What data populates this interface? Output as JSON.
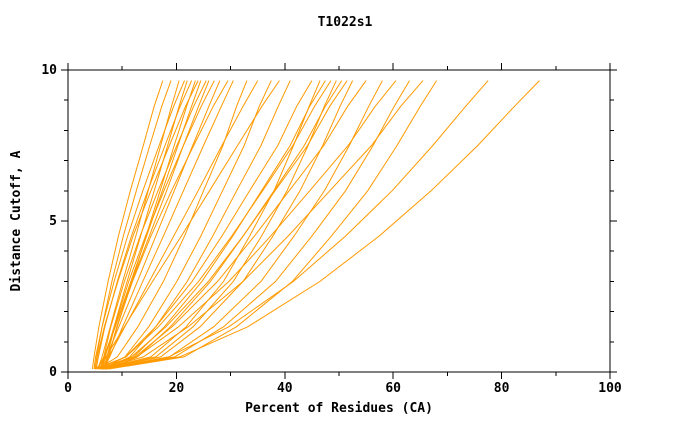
{
  "page": {
    "background": "#ffffff"
  },
  "chart_data": {
    "type": "line",
    "title": "T1022s1",
    "xlabel": "Percent of Residues (CA)",
    "ylabel": "Distance Cutoff, A",
    "xlim": [
      0,
      100
    ],
    "ylim": [
      0,
      10
    ],
    "x_ticks": [
      0,
      20,
      40,
      60,
      80,
      100
    ],
    "y_ticks": [
      0,
      5,
      10
    ],
    "x_minor_ticks": [
      10,
      30,
      50,
      70,
      90
    ],
    "y_minor_ticks": [
      1,
      2,
      3,
      4,
      6,
      7,
      8,
      9
    ],
    "grid": false,
    "legend": "none",
    "line_color": "#ff9a00",
    "axis_color": "#000000",
    "background": "#ffffff",
    "y_levels": [
      0.1,
      0.5,
      1.5,
      3,
      4.5,
      6,
      7.5,
      8.8,
      9.65
    ],
    "series": [
      [
        4.5,
        4.8,
        5.7,
        7.4,
        9.3,
        11.5,
        13.9,
        15.9,
        17.5
      ],
      [
        5.0,
        5.3,
        6.3,
        8.1,
        10.2,
        12.6,
        15.1,
        17.3,
        19.0
      ],
      [
        5.5,
        6.3,
        7.8,
        10.1,
        12.5,
        14.8,
        17.1,
        19.1,
        20.5
      ],
      [
        4.8,
        5.1,
        6.3,
        8.5,
        11.0,
        13.8,
        16.8,
        19.5,
        21.5
      ],
      [
        6.0,
        6.8,
        8.5,
        10.9,
        13.4,
        15.9,
        18.4,
        20.5,
        22.0
      ],
      [
        5.2,
        5.6,
        6.8,
        9.1,
        11.7,
        14.7,
        17.9,
        20.7,
        22.8
      ],
      [
        6.5,
        7.4,
        9.1,
        11.8,
        14.4,
        17.0,
        19.6,
        21.9,
        23.5
      ],
      [
        5.0,
        5.4,
        6.7,
        9.2,
        12.0,
        15.3,
        18.7,
        21.7,
        24.0
      ],
      [
        5.8,
        6.8,
        8.7,
        11.6,
        14.5,
        17.4,
        20.3,
        22.8,
        24.5
      ],
      [
        6.2,
        6.6,
        7.9,
        10.4,
        13.3,
        16.6,
        20.1,
        23.2,
        25.5
      ],
      [
        5.5,
        6.6,
        8.7,
        11.8,
        15.0,
        18.2,
        21.3,
        24.1,
        26.0
      ],
      [
        6.8,
        7.2,
        8.6,
        11.2,
        14.3,
        17.7,
        21.3,
        24.6,
        27.0
      ],
      [
        6.0,
        7.1,
        9.4,
        12.8,
        16.2,
        19.6,
        23.0,
        26.0,
        28.0
      ],
      [
        7.0,
        7.5,
        9.0,
        11.9,
        15.3,
        19.1,
        23.2,
        26.8,
        29.5
      ],
      [
        6.4,
        7.7,
        10.1,
        13.8,
        17.6,
        21.3,
        25.0,
        28.3,
        30.5
      ],
      [
        5.5,
        9.1,
        12.9,
        17.6,
        21.5,
        25.0,
        28.6,
        31.1,
        33.0
      ],
      [
        6.0,
        7.5,
        10.5,
        15.0,
        19.5,
        24.0,
        28.4,
        32.3,
        35.0
      ],
      [
        6.5,
        10.5,
        14.9,
        20.1,
        24.5,
        28.5,
        32.5,
        35.3,
        37.5
      ],
      [
        5.2,
        7.0,
        10.4,
        15.6,
        20.9,
        26.1,
        31.3,
        35.8,
        39.0
      ],
      [
        7.0,
        11.4,
        16.2,
        22.0,
        26.7,
        31.1,
        35.6,
        38.8,
        41.0
      ],
      [
        5.5,
        10.6,
        16.2,
        22.9,
        28.4,
        33.5,
        38.7,
        42.2,
        45.0
      ],
      [
        6.0,
        15.3,
        21.8,
        28.7,
        33.5,
        38.0,
        41.6,
        44.5,
        46.5
      ],
      [
        6.8,
        12.1,
        17.8,
        24.7,
        30.4,
        35.7,
        41.0,
        44.6,
        47.5
      ],
      [
        5.0,
        10.7,
        16.7,
        24.1,
        30.2,
        35.9,
        41.5,
        45.5,
        48.5
      ],
      [
        6.3,
        16.2,
        23.1,
        30.5,
        35.7,
        40.4,
        44.3,
        47.3,
        49.5
      ],
      [
        7.2,
        12.8,
        18.9,
        26.3,
        32.3,
        38.0,
        43.6,
        47.5,
        50.5
      ],
      [
        5.8,
        11.7,
        18.1,
        25.9,
        32.3,
        38.2,
        44.2,
        48.3,
        51.5
      ],
      [
        6.5,
        17.1,
        24.4,
        32.3,
        37.8,
        42.8,
        47.0,
        50.2,
        52.5
      ],
      [
        6.0,
        12.4,
        19.2,
        27.6,
        34.4,
        40.8,
        47.2,
        51.6,
        55.0
      ],
      [
        7.0,
        18.7,
        26.9,
        35.6,
        41.7,
        47.3,
        51.9,
        55.5,
        58.0
      ],
      [
        5.5,
        12.7,
        20.4,
        29.7,
        37.4,
        44.6,
        51.7,
        56.7,
        60.5
      ],
      [
        6.8,
        19.7,
        28.7,
        38.3,
        45.0,
        51.2,
        56.3,
        60.2,
        63.0
      ],
      [
        6.2,
        13.9,
        22.2,
        32.3,
        40.6,
        48.3,
        56.0,
        61.4,
        65.5
      ],
      [
        7.5,
        21.4,
        31.1,
        41.4,
        48.6,
        55.3,
        60.7,
        65.0,
        68.0
      ],
      [
        6.5,
        18.6,
        29.7,
        41.6,
        51.2,
        59.8,
        67.3,
        73.4,
        77.5
      ],
      [
        7.0,
        20.6,
        33.2,
        46.5,
        57.4,
        67.0,
        75.6,
        82.4,
        87.0
      ]
    ]
  }
}
